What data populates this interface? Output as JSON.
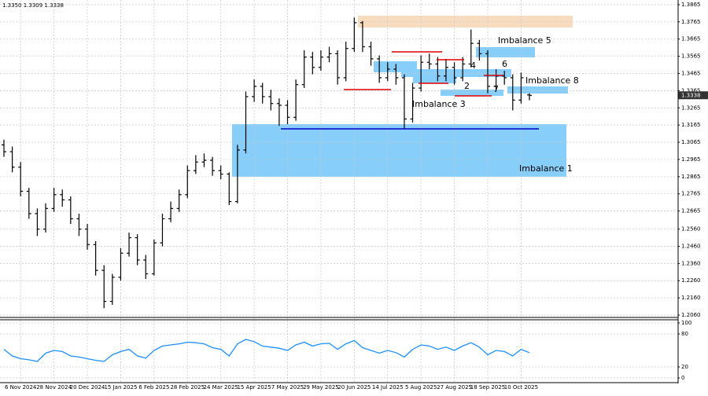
{
  "quote": "1.3350 1.3309 1.3338",
  "chart_data": [
    {
      "type": "ohlc",
      "categories": [
        null,
        null,
        "6 Nov 2024",
        null,
        null,
        null,
        "28 Nov 2024",
        null,
        null,
        null,
        "20 Dec 2024",
        null,
        null,
        null,
        "15 Jan 2025",
        null,
        null,
        null,
        "6 Feb 2025",
        null,
        null,
        null,
        "28 Feb 2025",
        null,
        null,
        null,
        "24 Mar 2025",
        null,
        null,
        null,
        "15 Apr 2025",
        null,
        null,
        null,
        "7 May 2025",
        null,
        null,
        null,
        "29 May 2025",
        null,
        null,
        null,
        "20 Jun 2025",
        null,
        null,
        null,
        "14 Jul 2025",
        null,
        null,
        null,
        "5 Aug 2025",
        null,
        null,
        null,
        "27 Aug 2025",
        null,
        null,
        null,
        "18 Sep 2025",
        null,
        null,
        null,
        "10 Oct 2025",
        null
      ],
      "open": [
        1.305,
        1.301,
        1.292,
        1.278,
        1.265,
        1.256,
        1.268,
        1.276,
        1.273,
        1.262,
        1.256,
        1.247,
        1.232,
        1.214,
        1.228,
        1.242,
        1.251,
        1.238,
        1.23,
        1.248,
        1.262,
        1.268,
        1.276,
        1.29,
        1.295,
        1.296,
        1.29,
        1.288,
        1.272,
        1.302,
        1.333,
        1.339,
        1.333,
        1.329,
        1.328,
        1.321,
        1.34,
        1.356,
        1.35,
        1.356,
        1.358,
        1.344,
        1.361,
        1.376,
        1.362,
        1.355,
        1.344,
        1.349,
        1.344,
        1.32,
        1.338,
        1.353,
        1.352,
        1.345,
        1.35,
        1.344,
        1.352,
        1.364,
        1.358,
        1.339,
        1.345,
        1.344,
        1.331,
        1.334
      ],
      "high": [
        1.308,
        1.304,
        1.295,
        1.28,
        1.268,
        1.271,
        1.28,
        1.279,
        1.275,
        1.265,
        1.259,
        1.249,
        1.235,
        1.23,
        1.245,
        1.254,
        1.253,
        1.241,
        1.25,
        1.265,
        1.272,
        1.279,
        1.293,
        1.299,
        1.3,
        1.298,
        1.293,
        1.289,
        1.305,
        1.336,
        1.343,
        1.341,
        1.337,
        1.332,
        1.331,
        1.343,
        1.36,
        1.359,
        1.36,
        1.362,
        1.36,
        1.365,
        1.379,
        1.377,
        1.365,
        1.357,
        1.353,
        1.352,
        1.346,
        1.341,
        1.357,
        1.358,
        1.356,
        1.355,
        1.353,
        1.356,
        1.372,
        1.366,
        1.36,
        1.349,
        1.348,
        1.346,
        1.347,
        1.335
      ],
      "low": [
        1.298,
        1.289,
        1.275,
        1.262,
        1.252,
        1.254,
        1.266,
        1.269,
        1.259,
        1.252,
        1.244,
        1.229,
        1.21,
        1.212,
        1.226,
        1.24,
        1.235,
        1.227,
        1.229,
        1.246,
        1.26,
        1.266,
        1.274,
        1.288,
        1.292,
        1.287,
        1.285,
        1.27,
        1.271,
        1.3,
        1.33,
        1.329,
        1.325,
        1.316,
        1.317,
        1.319,
        1.338,
        1.346,
        1.348,
        1.353,
        1.34,
        1.342,
        1.359,
        1.359,
        1.351,
        1.341,
        1.342,
        1.34,
        1.314,
        1.318,
        1.336,
        1.349,
        1.342,
        1.342,
        1.34,
        1.342,
        1.35,
        1.354,
        1.335,
        1.336,
        1.34,
        1.325,
        1.329,
        1.3309
      ],
      "close": [
        1.301,
        1.292,
        1.278,
        1.265,
        1.256,
        1.268,
        1.276,
        1.273,
        1.262,
        1.256,
        1.247,
        1.232,
        1.214,
        1.228,
        1.242,
        1.251,
        1.238,
        1.23,
        1.248,
        1.262,
        1.268,
        1.276,
        1.29,
        1.295,
        1.296,
        1.29,
        1.288,
        1.272,
        1.302,
        1.333,
        1.339,
        1.333,
        1.329,
        1.328,
        1.321,
        1.34,
        1.356,
        1.35,
        1.356,
        1.358,
        1.344,
        1.361,
        1.376,
        1.362,
        1.355,
        1.344,
        1.349,
        1.344,
        1.32,
        1.338,
        1.353,
        1.352,
        1.345,
        1.35,
        1.344,
        1.352,
        1.364,
        1.358,
        1.339,
        1.345,
        1.344,
        1.331,
        1.344,
        1.3338
      ],
      "color": "#000000",
      "ylim": [
        1.2051,
        1.3892
      ],
      "yticks": [
        1.3865,
        1.3765,
        1.3665,
        1.3565,
        1.3465,
        1.3365,
        1.3265,
        1.3165,
        1.3065,
        1.2965,
        1.2865,
        1.2765,
        1.2665,
        {
          "value": 1.256,
          "label": "1.2560"
        },
        {
          "value": 1.246,
          "label": "1.2460"
        },
        {
          "value": 1.236,
          "label": "1.2360"
        },
        {
          "value": 1.226,
          "label": "1.2260"
        },
        {
          "value": 1.216,
          "label": "1.2160"
        },
        {
          "value": 1.206,
          "label": "1.2060"
        }
      ],
      "last_price": 1.3338,
      "grid": true,
      "annotations": [
        "Imbalance 5",
        "Imbalance 8",
        "Imbalance 3",
        "Imbalance 1",
        "2",
        "4",
        "6",
        "7"
      ]
    },
    {
      "type": "line",
      "values": [
        52,
        40,
        35,
        33,
        30,
        45,
        50,
        48,
        40,
        38,
        35,
        32,
        30,
        42,
        48,
        52,
        40,
        36,
        50,
        58,
        60,
        62,
        65,
        64,
        62,
        55,
        52,
        40,
        62,
        70,
        66,
        58,
        56,
        54,
        50,
        60,
        65,
        58,
        62,
        63,
        52,
        62,
        68,
        55,
        50,
        45,
        50,
        46,
        38,
        52,
        60,
        58,
        52,
        56,
        50,
        58,
        64,
        56,
        42,
        50,
        48,
        40,
        52,
        46
      ],
      "color": "#1e90ff",
      "ylim": [
        0,
        100
      ],
      "yticks": [
        0,
        20,
        80,
        100
      ],
      "grid": true
    }
  ]
}
